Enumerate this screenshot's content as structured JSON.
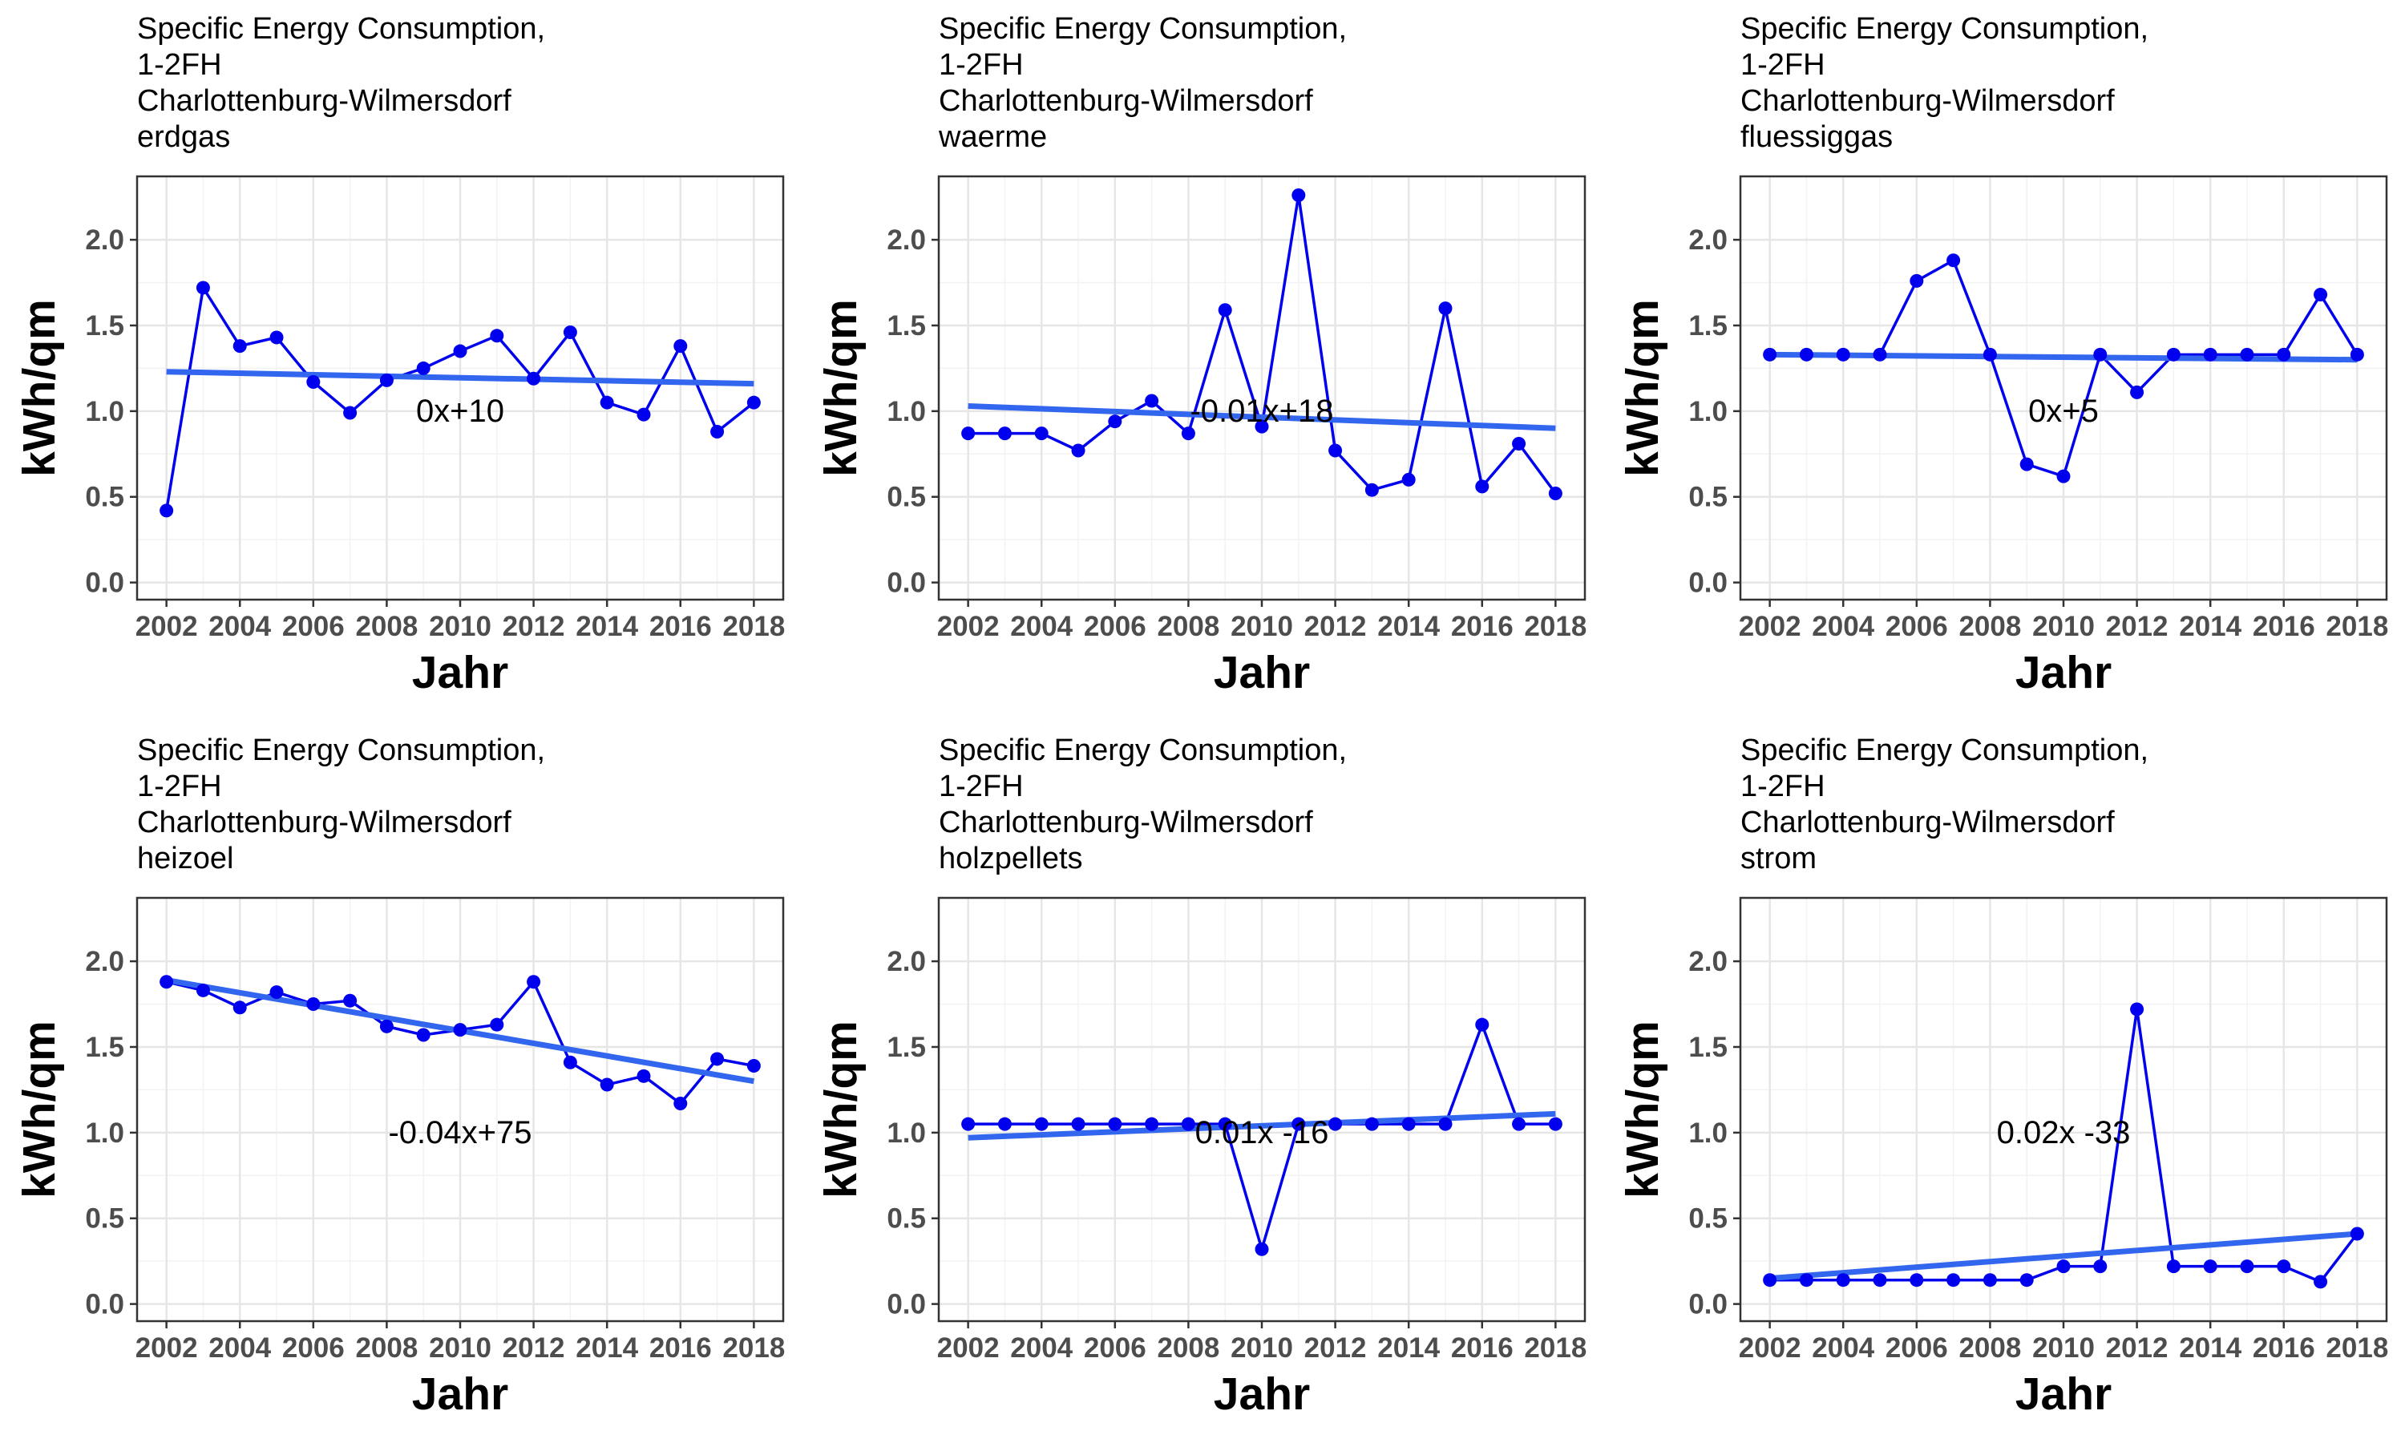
{
  "chart_data": [
    {
      "type": "line",
      "title_lines": [
        "Specific Energy Consumption,",
        "1-2FH",
        "Charlottenburg-Wilmersdorf",
        "erdgas"
      ],
      "xlabel": "Jahr",
      "ylabel": "kWh/qm",
      "xlim": [
        2001.2,
        2018.8
      ],
      "ylim": [
        -0.1,
        2.37
      ],
      "x_ticks": [
        2002,
        2004,
        2006,
        2008,
        2010,
        2012,
        2014,
        2016,
        2018
      ],
      "y_ticks": [
        0.0,
        0.5,
        1.0,
        1.5,
        2.0
      ],
      "x_tick_labels": [
        "2002",
        "2004",
        "2006",
        "2008",
        "2010",
        "2012",
        "2014",
        "2016",
        "2018"
      ],
      "y_tick_labels": [
        "0.0",
        "0.5",
        "1.0",
        "1.5",
        "2.0"
      ],
      "grid": true,
      "x": [
        2002,
        2003,
        2004,
        2005,
        2006,
        2007,
        2008,
        2009,
        2010,
        2011,
        2012,
        2013,
        2014,
        2015,
        2016,
        2017,
        2018
      ],
      "values": [
        0.42,
        1.72,
        1.38,
        1.43,
        1.17,
        0.99,
        1.18,
        1.25,
        1.35,
        1.44,
        1.19,
        1.46,
        1.05,
        0.98,
        1.38,
        0.88,
        1.05
      ],
      "trend": [
        1.23,
        1.16
      ],
      "annotation": {
        "text": "0x+10",
        "x": 2010,
        "y": 1.0
      }
    },
    {
      "type": "line",
      "title_lines": [
        "Specific Energy Consumption,",
        "1-2FH",
        "Charlottenburg-Wilmersdorf",
        "waerme"
      ],
      "xlabel": "Jahr",
      "ylabel": "kWh/qm",
      "xlim": [
        2001.2,
        2018.8
      ],
      "ylim": [
        -0.1,
        2.37
      ],
      "x_ticks": [
        2002,
        2004,
        2006,
        2008,
        2010,
        2012,
        2014,
        2016,
        2018
      ],
      "y_ticks": [
        0.0,
        0.5,
        1.0,
        1.5,
        2.0
      ],
      "x_tick_labels": [
        "2002",
        "2004",
        "2006",
        "2008",
        "2010",
        "2012",
        "2014",
        "2016",
        "2018"
      ],
      "y_tick_labels": [
        "0.0",
        "0.5",
        "1.0",
        "1.5",
        "2.0"
      ],
      "grid": true,
      "x": [
        2002,
        2003,
        2004,
        2005,
        2006,
        2007,
        2008,
        2009,
        2010,
        2011,
        2012,
        2013,
        2014,
        2015,
        2016,
        2017,
        2018
      ],
      "values": [
        0.87,
        0.87,
        0.87,
        0.77,
        0.94,
        1.06,
        0.87,
        1.59,
        0.91,
        2.26,
        0.77,
        0.54,
        0.6,
        1.6,
        0.56,
        0.81,
        0.52
      ],
      "trend": [
        1.03,
        0.9
      ],
      "annotation": {
        "text": "-0.01x+18",
        "x": 2010,
        "y": 1.0
      }
    },
    {
      "type": "line",
      "title_lines": [
        "Specific Energy Consumption,",
        "1-2FH",
        "Charlottenburg-Wilmersdorf",
        "fluessiggas"
      ],
      "xlabel": "Jahr",
      "ylabel": "kWh/qm",
      "xlim": [
        2001.2,
        2018.8
      ],
      "ylim": [
        -0.1,
        2.37
      ],
      "x_ticks": [
        2002,
        2004,
        2006,
        2008,
        2010,
        2012,
        2014,
        2016,
        2018
      ],
      "y_ticks": [
        0.0,
        0.5,
        1.0,
        1.5,
        2.0
      ],
      "x_tick_labels": [
        "2002",
        "2004",
        "2006",
        "2008",
        "2010",
        "2012",
        "2014",
        "2016",
        "2018"
      ],
      "y_tick_labels": [
        "0.0",
        "0.5",
        "1.0",
        "1.5",
        "2.0"
      ],
      "grid": true,
      "x": [
        2002,
        2003,
        2004,
        2005,
        2006,
        2007,
        2008,
        2009,
        2010,
        2011,
        2012,
        2013,
        2014,
        2015,
        2016,
        2017,
        2018
      ],
      "values": [
        1.33,
        1.33,
        1.33,
        1.33,
        1.76,
        1.88,
        1.33,
        0.69,
        0.62,
        1.33,
        1.11,
        1.33,
        1.33,
        1.33,
        1.33,
        1.68,
        1.33
      ],
      "trend": [
        1.33,
        1.3
      ],
      "annotation": {
        "text": "0x+5",
        "x": 2010,
        "y": 1.0
      }
    },
    {
      "type": "line",
      "title_lines": [
        "Specific Energy Consumption,",
        "1-2FH",
        "Charlottenburg-Wilmersdorf",
        "heizoel"
      ],
      "xlabel": "Jahr",
      "ylabel": "kWh/qm",
      "xlim": [
        2001.2,
        2018.8
      ],
      "ylim": [
        -0.1,
        2.37
      ],
      "x_ticks": [
        2002,
        2004,
        2006,
        2008,
        2010,
        2012,
        2014,
        2016,
        2018
      ],
      "y_ticks": [
        0.0,
        0.5,
        1.0,
        1.5,
        2.0
      ],
      "x_tick_labels": [
        "2002",
        "2004",
        "2006",
        "2008",
        "2010",
        "2012",
        "2014",
        "2016",
        "2018"
      ],
      "y_tick_labels": [
        "0.0",
        "0.5",
        "1.0",
        "1.5",
        "2.0"
      ],
      "grid": true,
      "x": [
        2002,
        2003,
        2004,
        2005,
        2006,
        2007,
        2008,
        2009,
        2010,
        2011,
        2012,
        2013,
        2014,
        2015,
        2016,
        2017,
        2018
      ],
      "values": [
        1.88,
        1.83,
        1.73,
        1.82,
        1.75,
        1.77,
        1.62,
        1.57,
        1.6,
        1.63,
        1.88,
        1.41,
        1.28,
        1.33,
        1.17,
        1.43,
        1.39
      ],
      "trend": [
        1.89,
        1.3
      ],
      "annotation": {
        "text": "-0.04x+75",
        "x": 2010,
        "y": 1.0
      }
    },
    {
      "type": "line",
      "title_lines": [
        "Specific Energy Consumption,",
        "1-2FH",
        "Charlottenburg-Wilmersdorf",
        "holzpellets"
      ],
      "xlabel": "Jahr",
      "ylabel": "kWh/qm",
      "xlim": [
        2001.2,
        2018.8
      ],
      "ylim": [
        -0.1,
        2.37
      ],
      "x_ticks": [
        2002,
        2004,
        2006,
        2008,
        2010,
        2012,
        2014,
        2016,
        2018
      ],
      "y_ticks": [
        0.0,
        0.5,
        1.0,
        1.5,
        2.0
      ],
      "x_tick_labels": [
        "2002",
        "2004",
        "2006",
        "2008",
        "2010",
        "2012",
        "2014",
        "2016",
        "2018"
      ],
      "y_tick_labels": [
        "0.0",
        "0.5",
        "1.0",
        "1.5",
        "2.0"
      ],
      "grid": true,
      "x": [
        2002,
        2003,
        2004,
        2005,
        2006,
        2007,
        2008,
        2009,
        2010,
        2011,
        2012,
        2013,
        2014,
        2015,
        2016,
        2017,
        2018
      ],
      "values": [
        1.05,
        1.05,
        1.05,
        1.05,
        1.05,
        1.05,
        1.05,
        1.05,
        0.32,
        1.05,
        1.05,
        1.05,
        1.05,
        1.05,
        1.63,
        1.05,
        1.05
      ],
      "trend": [
        0.97,
        1.11
      ],
      "annotation": {
        "text": "0.01x -16",
        "x": 2010,
        "y": 1.0
      }
    },
    {
      "type": "line",
      "title_lines": [
        "Specific Energy Consumption,",
        "1-2FH",
        "Charlottenburg-Wilmersdorf",
        "strom"
      ],
      "xlabel": "Jahr",
      "ylabel": "kWh/qm",
      "xlim": [
        2001.2,
        2018.8
      ],
      "ylim": [
        -0.1,
        2.37
      ],
      "x_ticks": [
        2002,
        2004,
        2006,
        2008,
        2010,
        2012,
        2014,
        2016,
        2018
      ],
      "y_ticks": [
        0.0,
        0.5,
        1.0,
        1.5,
        2.0
      ],
      "x_tick_labels": [
        "2002",
        "2004",
        "2006",
        "2008",
        "2010",
        "2012",
        "2014",
        "2016",
        "2018"
      ],
      "y_tick_labels": [
        "0.0",
        "0.5",
        "1.0",
        "1.5",
        "2.0"
      ],
      "grid": true,
      "x": [
        2002,
        2003,
        2004,
        2005,
        2006,
        2007,
        2008,
        2009,
        2010,
        2011,
        2012,
        2013,
        2014,
        2015,
        2016,
        2017,
        2018
      ],
      "values": [
        0.14,
        0.14,
        0.14,
        0.14,
        0.14,
        0.14,
        0.14,
        0.14,
        0.22,
        0.22,
        1.72,
        0.22,
        0.22,
        0.22,
        0.22,
        0.13,
        0.41
      ],
      "trend": [
        0.15,
        0.41
      ],
      "annotation": {
        "text": "0.02x -33",
        "x": 2010,
        "y": 1.0
      }
    }
  ],
  "colors": {
    "series": "#0000ee",
    "trend": "#3366ee",
    "grid_major": "#e6e6e6",
    "grid_minor": "#f2f2f2",
    "axis_text": "#4d4d4d",
    "panel_border": "#333333"
  }
}
